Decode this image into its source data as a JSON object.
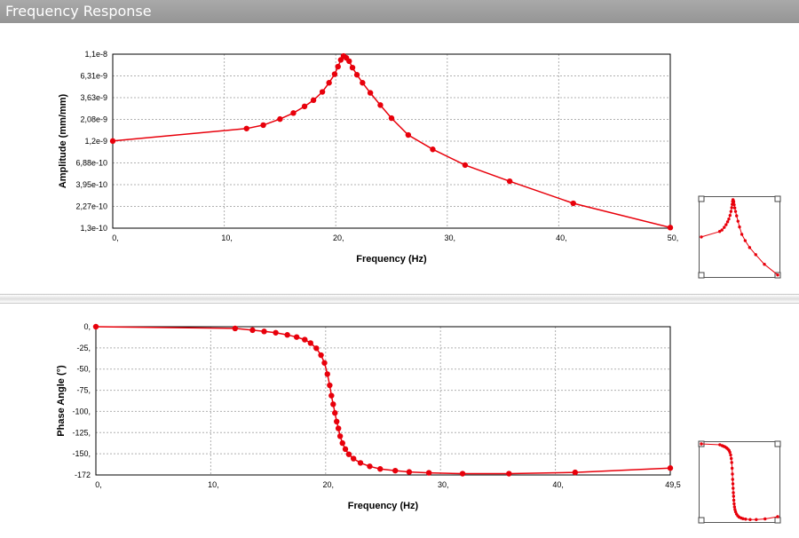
{
  "window": {
    "title": "Frequency Response"
  },
  "chart_data": [
    {
      "type": "line",
      "title": "",
      "xlabel": "Frequency (Hz)",
      "ylabel": "Amplitude (mm/mm)",
      "xlim": [
        0,
        50
      ],
      "ylim": [
        1.3e-10,
        1.1e-08
      ],
      "y_scale": "log",
      "x_ticks": [
        "0,",
        "10,",
        "20,",
        "30,",
        "40,",
        "50,"
      ],
      "y_ticks": [
        "1,1e-8",
        "6,31e-9",
        "3,63e-9",
        "2,08e-9",
        "1,2e-9",
        "6,88e-10",
        "3,95e-10",
        "2,27e-10",
        "1,3e-10"
      ],
      "grid": true,
      "color": "#e8000b",
      "x": [
        0,
        12.0,
        13.5,
        15.0,
        16.2,
        17.2,
        18.0,
        18.8,
        19.4,
        19.9,
        20.2,
        20.45,
        20.7,
        20.95,
        21.2,
        21.5,
        21.9,
        22.4,
        23.1,
        24.0,
        25.0,
        26.5,
        28.7,
        31.6,
        35.6,
        41.3,
        50.0
      ],
      "y": [
        1.2e-09,
        1.65e-09,
        1.8e-09,
        2.1e-09,
        2.45e-09,
        2.9e-09,
        3.4e-09,
        4.2e-09,
        5.3e-09,
        6.6e-09,
        8e-09,
        9.5e-09,
        1.05e-08,
        1e-08,
        9.2e-09,
        7.8e-09,
        6.5e-09,
        5.3e-09,
        4.1e-09,
        3e-09,
        2.15e-09,
        1.4e-09,
        9.7e-10,
        6.5e-10,
        4.3e-10,
        2.45e-10,
        1.32e-10
      ]
    },
    {
      "type": "line",
      "title": "",
      "xlabel": "Frequency (Hz)",
      "ylabel": "Phase Angle (°)",
      "xlim": [
        0,
        49.5
      ],
      "ylim": [
        -172,
        0
      ],
      "x_ticks": [
        "0,",
        "10,",
        "20,",
        "30,",
        "40,",
        "49,5"
      ],
      "y_ticks": [
        "0,",
        "-25,",
        "-50,",
        "-75,",
        "-100,",
        "-125,",
        "-150,",
        "-172"
      ],
      "grid": true,
      "color": "#e8000b",
      "x": [
        0,
        12.0,
        13.5,
        14.5,
        15.5,
        16.5,
        17.3,
        18.0,
        18.5,
        19.0,
        19.4,
        19.7,
        19.95,
        20.15,
        20.3,
        20.45,
        20.6,
        20.75,
        20.9,
        21.05,
        21.25,
        21.5,
        21.8,
        22.2,
        22.8,
        23.6,
        24.5,
        25.8,
        27.0,
        28.7,
        31.6,
        35.6,
        41.3,
        49.5
      ],
      "y": [
        0,
        -2,
        -4,
        -5.5,
        -7,
        -9.5,
        -12,
        -15,
        -19,
        -25,
        -33,
        -42,
        -55,
        -68,
        -80,
        -90,
        -100,
        -110,
        -118,
        -127,
        -135,
        -142,
        -148,
        -153,
        -158,
        -162,
        -165,
        -167,
        -168.5,
        -169.5,
        -170.5,
        -170.5,
        -169,
        -164
      ]
    }
  ]
}
